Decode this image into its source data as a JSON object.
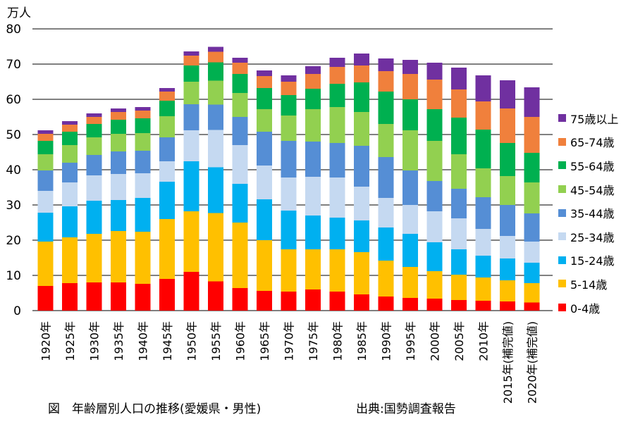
{
  "chart_data": {
    "type": "bar",
    "stacked": true,
    "unit_label": "万人",
    "ylim": [
      0,
      80
    ],
    "yticks": [
      0,
      10,
      20,
      30,
      40,
      50,
      60,
      70,
      80
    ],
    "grid": true,
    "legend_position": "right",
    "categories": [
      "1920年",
      "1925年",
      "1930年",
      "1935年",
      "1940年",
      "1945年",
      "1950年",
      "1955年",
      "1960年",
      "1965年",
      "1970年",
      "1975年",
      "1980年",
      "1985年",
      "1990年",
      "1995年",
      "2000年",
      "2005年",
      "2010年",
      "2015年(補完値)",
      "2020年(補完値)"
    ],
    "series": [
      {
        "name": "0-4歳",
        "color": "#ff0000",
        "values": [
          7.0,
          7.8,
          8.0,
          8.0,
          7.6,
          9.0,
          11.0,
          8.3,
          6.4,
          5.6,
          5.4,
          6.0,
          5.4,
          4.6,
          4.0,
          3.6,
          3.4,
          3.0,
          2.8,
          2.6,
          2.3
        ]
      },
      {
        "name": "5-14歳",
        "color": "#ffc000",
        "values": [
          12.6,
          13.0,
          13.8,
          14.6,
          14.8,
          17.0,
          17.2,
          19.4,
          18.6,
          14.4,
          12.0,
          11.4,
          12.0,
          12.0,
          10.2,
          8.8,
          7.8,
          7.2,
          6.6,
          6.0,
          5.5
        ]
      },
      {
        "name": "15-24歳",
        "color": "#00b0f0",
        "values": [
          8.2,
          8.8,
          9.4,
          8.8,
          9.6,
          10.6,
          14.2,
          13.0,
          11.0,
          11.6,
          11.0,
          9.6,
          9.0,
          9.0,
          9.4,
          9.4,
          8.2,
          7.2,
          6.2,
          6.2,
          5.8
        ]
      },
      {
        "name": "25-34歳",
        "color": "#c5d9f1",
        "values": [
          6.2,
          6.8,
          7.2,
          7.4,
          7.0,
          5.8,
          8.8,
          10.6,
          11.0,
          9.6,
          9.4,
          11.0,
          11.4,
          9.6,
          8.4,
          8.2,
          8.8,
          8.8,
          7.6,
          6.4,
          6.0
        ]
      },
      {
        "name": "35-44歳",
        "color": "#558ed5",
        "values": [
          5.8,
          5.6,
          5.8,
          6.4,
          6.4,
          6.8,
          7.4,
          7.2,
          8.0,
          9.6,
          10.4,
          10.0,
          9.8,
          11.6,
          11.6,
          9.8,
          8.6,
          8.4,
          9.0,
          8.8,
          8.0
        ]
      },
      {
        "name": "45-54歳",
        "color": "#92d050",
        "values": [
          4.6,
          5.0,
          5.0,
          5.0,
          5.0,
          6.0,
          6.4,
          6.8,
          6.8,
          6.4,
          7.2,
          9.2,
          10.2,
          9.6,
          9.4,
          11.4,
          11.4,
          9.8,
          8.2,
          8.2,
          8.8
        ]
      },
      {
        "name": "55-64歳",
        "color": "#00b050",
        "values": [
          3.8,
          3.8,
          3.8,
          4.0,
          4.2,
          4.4,
          4.6,
          5.2,
          5.4,
          6.0,
          5.8,
          5.8,
          6.6,
          8.4,
          9.2,
          8.8,
          9.0,
          10.4,
          11.0,
          9.4,
          8.4
        ]
      },
      {
        "name": "65-74歳",
        "color": "#f0803c",
        "values": [
          2.0,
          2.0,
          2.0,
          2.2,
          2.2,
          2.6,
          2.8,
          3.0,
          3.2,
          3.4,
          3.8,
          4.2,
          4.8,
          4.8,
          5.8,
          7.2,
          8.4,
          8.0,
          8.0,
          9.8,
          10.2
        ]
      },
      {
        "name": "75歳以上",
        "color": "#7030a0",
        "values": [
          1.0,
          1.0,
          1.0,
          1.0,
          1.0,
          1.0,
          1.2,
          1.4,
          1.4,
          1.6,
          1.8,
          2.2,
          2.6,
          3.4,
          3.6,
          4.0,
          4.8,
          6.2,
          7.4,
          8.0,
          8.4
        ]
      }
    ]
  },
  "caption": "図　年齢層別人口の推移(愛媛県・男性)",
  "source": "出典:国勢調査報告"
}
